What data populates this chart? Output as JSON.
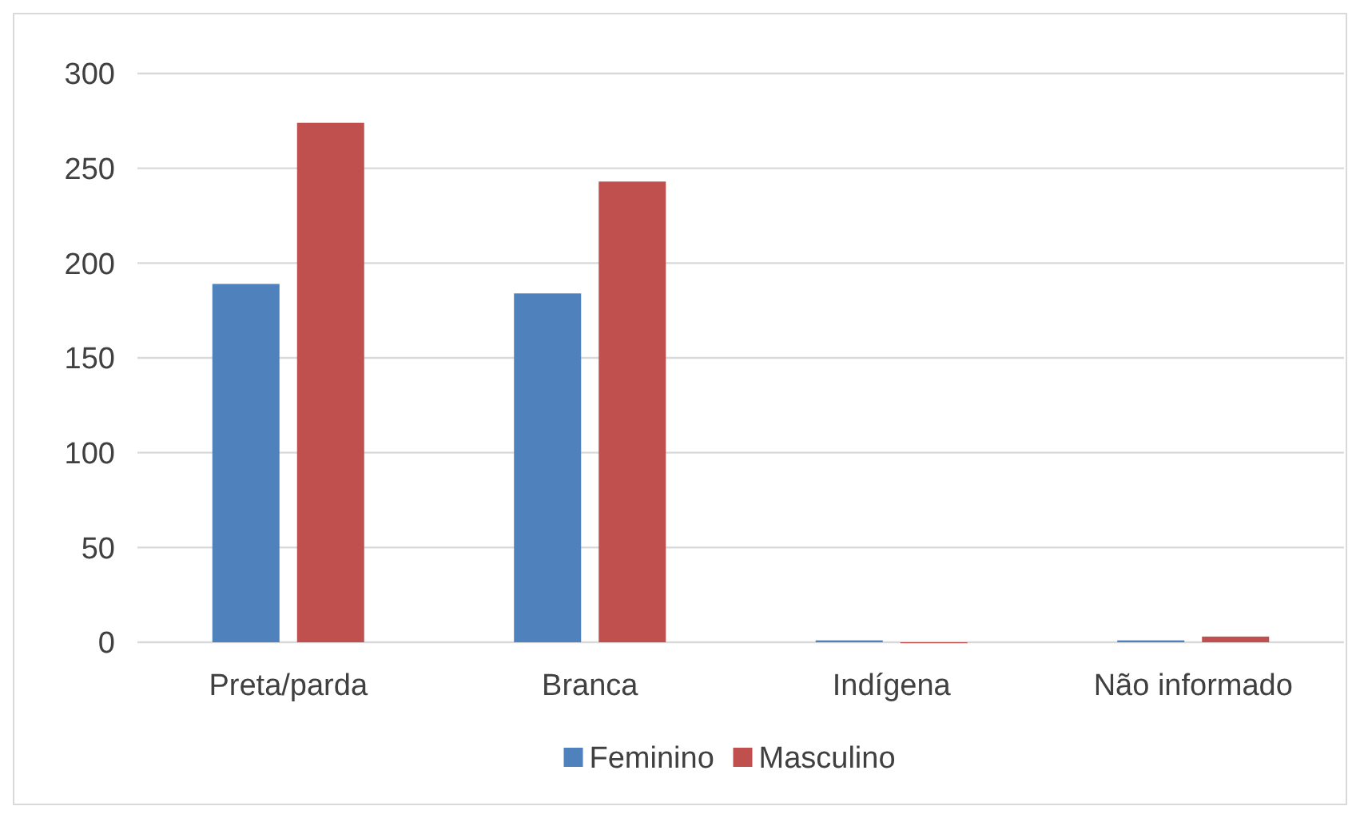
{
  "chart_data": {
    "type": "bar",
    "categories": [
      "Preta/parda",
      "Branca",
      "Indígena",
      "Não informado"
    ],
    "series": [
      {
        "name": "Feminino",
        "color": "#4f81bd",
        "values": [
          189,
          184,
          1,
          1
        ]
      },
      {
        "name": "Masculino",
        "color": "#c0504d",
        "values": [
          274,
          243,
          0,
          3
        ]
      }
    ],
    "ylim": [
      0,
      300
    ],
    "yticks": [
      0,
      50,
      100,
      150,
      200,
      250,
      300
    ],
    "grid": "y",
    "legend": "bottom"
  }
}
